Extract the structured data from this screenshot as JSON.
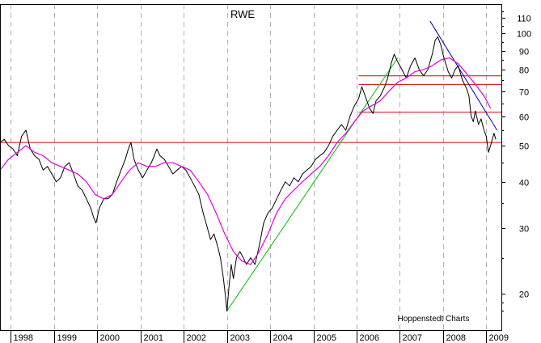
{
  "chart_data": {
    "type": "line",
    "title": "RWE",
    "credit": "Hoppenstedt Charts",
    "scale": "log",
    "ylim": [
      16,
      120
    ],
    "xlim": [
      1997.75,
      2009.35
    ],
    "y_ticks": [
      {
        "value": 110,
        "label": "110"
      },
      {
        "value": 100,
        "label": "100"
      },
      {
        "value": 90,
        "label": "90"
      },
      {
        "value": 80,
        "label": "80"
      },
      {
        "value": 70,
        "label": "70"
      },
      {
        "value": 60,
        "label": "60"
      },
      {
        "value": 50,
        "label": "50"
      },
      {
        "value": 40,
        "label": "40"
      },
      {
        "value": 30,
        "label": "30"
      },
      {
        "value": 20,
        "label": "20"
      }
    ],
    "x_ticks": [
      {
        "value": 1998,
        "label": "1998"
      },
      {
        "value": 1999,
        "label": "1999"
      },
      {
        "value": 2000,
        "label": "2000"
      },
      {
        "value": 2001,
        "label": "2001"
      },
      {
        "value": 2002,
        "label": "2002"
      },
      {
        "value": 2003,
        "label": "2003"
      },
      {
        "value": 2004,
        "label": "2004"
      },
      {
        "value": 2005,
        "label": "2005"
      },
      {
        "value": 2006,
        "label": "2006"
      },
      {
        "value": 2007,
        "label": "2007"
      },
      {
        "value": 2008,
        "label": "2008"
      },
      {
        "value": 2009,
        "label": "2009"
      }
    ],
    "grid": {
      "vertical": true,
      "horizontal": false,
      "style": "dashed"
    },
    "series": [
      {
        "role": "price",
        "color": "#000000",
        "points": [
          [
            1997.75,
            51
          ],
          [
            1997.85,
            52
          ],
          [
            1997.95,
            50
          ],
          [
            1998.05,
            49
          ],
          [
            1998.15,
            47
          ],
          [
            1998.25,
            53
          ],
          [
            1998.35,
            55
          ],
          [
            1998.45,
            49
          ],
          [
            1998.55,
            47
          ],
          [
            1998.65,
            46
          ],
          [
            1998.75,
            43
          ],
          [
            1998.85,
            44
          ],
          [
            1998.95,
            42
          ],
          [
            1999.05,
            40
          ],
          [
            1999.15,
            41
          ],
          [
            1999.25,
            44
          ],
          [
            1999.35,
            45
          ],
          [
            1999.45,
            42
          ],
          [
            1999.55,
            39
          ],
          [
            1999.65,
            38
          ],
          [
            1999.75,
            36
          ],
          [
            1999.85,
            34
          ],
          [
            1999.92,
            32
          ],
          [
            1999.97,
            31
          ],
          [
            2000.05,
            34
          ],
          [
            2000.15,
            36
          ],
          [
            2000.25,
            36
          ],
          [
            2000.35,
            37
          ],
          [
            2000.45,
            40
          ],
          [
            2000.55,
            43
          ],
          [
            2000.65,
            46
          ],
          [
            2000.72,
            49
          ],
          [
            2000.78,
            51
          ],
          [
            2000.85,
            46
          ],
          [
            2000.95,
            43
          ],
          [
            2001.05,
            41
          ],
          [
            2001.15,
            43
          ],
          [
            2001.25,
            45
          ],
          [
            2001.32,
            47
          ],
          [
            2001.38,
            49
          ],
          [
            2001.45,
            47
          ],
          [
            2001.55,
            46
          ],
          [
            2001.65,
            44
          ],
          [
            2001.75,
            42
          ],
          [
            2001.85,
            43
          ],
          [
            2001.95,
            44
          ],
          [
            2002.05,
            43
          ],
          [
            2002.15,
            41
          ],
          [
            2002.25,
            39
          ],
          [
            2002.35,
            37
          ],
          [
            2002.45,
            33
          ],
          [
            2002.55,
            30
          ],
          [
            2002.62,
            28
          ],
          [
            2002.7,
            29
          ],
          [
            2002.78,
            27
          ],
          [
            2002.85,
            25
          ],
          [
            2002.92,
            22
          ],
          [
            2002.96,
            20
          ],
          [
            2003.0,
            18
          ],
          [
            2003.05,
            21
          ],
          [
            2003.1,
            24
          ],
          [
            2003.15,
            22
          ],
          [
            2003.22,
            25
          ],
          [
            2003.3,
            26
          ],
          [
            2003.38,
            25
          ],
          [
            2003.45,
            24
          ],
          [
            2003.55,
            25
          ],
          [
            2003.65,
            24
          ],
          [
            2003.75,
            27
          ],
          [
            2003.85,
            31
          ],
          [
            2003.95,
            33
          ],
          [
            2004.05,
            34
          ],
          [
            2004.15,
            36
          ],
          [
            2004.25,
            38
          ],
          [
            2004.35,
            40
          ],
          [
            2004.45,
            39
          ],
          [
            2004.55,
            41
          ],
          [
            2004.65,
            40
          ],
          [
            2004.75,
            42
          ],
          [
            2004.85,
            43
          ],
          [
            2004.95,
            44
          ],
          [
            2005.05,
            46
          ],
          [
            2005.15,
            47
          ],
          [
            2005.25,
            48
          ],
          [
            2005.35,
            50
          ],
          [
            2005.45,
            53
          ],
          [
            2005.55,
            55
          ],
          [
            2005.65,
            57
          ],
          [
            2005.75,
            55
          ],
          [
            2005.85,
            60
          ],
          [
            2005.95,
            64
          ],
          [
            2006.05,
            67
          ],
          [
            2006.12,
            72
          ],
          [
            2006.2,
            68
          ],
          [
            2006.3,
            63
          ],
          [
            2006.38,
            61
          ],
          [
            2006.45,
            66
          ],
          [
            2006.55,
            68
          ],
          [
            2006.65,
            72
          ],
          [
            2006.72,
            76
          ],
          [
            2006.8,
            83
          ],
          [
            2006.87,
            88
          ],
          [
            2006.95,
            84
          ],
          [
            2007.05,
            80
          ],
          [
            2007.15,
            76
          ],
          [
            2007.25,
            82
          ],
          [
            2007.35,
            86
          ],
          [
            2007.45,
            80
          ],
          [
            2007.55,
            77
          ],
          [
            2007.65,
            80
          ],
          [
            2007.75,
            88
          ],
          [
            2007.82,
            96
          ],
          [
            2007.88,
            98
          ],
          [
            2007.95,
            93
          ],
          [
            2008.0,
            88
          ],
          [
            2008.05,
            84
          ],
          [
            2008.12,
            79
          ],
          [
            2008.2,
            76
          ],
          [
            2008.28,
            80
          ],
          [
            2008.35,
            82
          ],
          [
            2008.45,
            75
          ],
          [
            2008.55,
            71
          ],
          [
            2008.6,
            68
          ],
          [
            2008.65,
            60
          ],
          [
            2008.7,
            58
          ],
          [
            2008.75,
            62
          ],
          [
            2008.82,
            57
          ],
          [
            2008.88,
            59
          ],
          [
            2008.95,
            55
          ],
          [
            2009.0,
            53
          ],
          [
            2009.05,
            48
          ],
          [
            2009.1,
            50
          ],
          [
            2009.18,
            54
          ],
          [
            2009.22,
            52
          ]
        ]
      },
      {
        "role": "moving-average",
        "color": "#e000e0",
        "points": [
          [
            1997.75,
            43
          ],
          [
            1997.95,
            46
          ],
          [
            1998.15,
            48
          ],
          [
            1998.35,
            50
          ],
          [
            1998.55,
            48
          ],
          [
            1998.75,
            47
          ],
          [
            1998.95,
            45
          ],
          [
            1999.15,
            44
          ],
          [
            1999.35,
            43
          ],
          [
            1999.55,
            42
          ],
          [
            1999.75,
            40
          ],
          [
            1999.95,
            37
          ],
          [
            2000.15,
            36
          ],
          [
            2000.35,
            37
          ],
          [
            2000.55,
            40
          ],
          [
            2000.75,
            43
          ],
          [
            2000.95,
            45
          ],
          [
            2001.15,
            44
          ],
          [
            2001.35,
            44
          ],
          [
            2001.55,
            45
          ],
          [
            2001.75,
            45
          ],
          [
            2001.95,
            44
          ],
          [
            2002.15,
            43
          ],
          [
            2002.35,
            40
          ],
          [
            2002.55,
            37
          ],
          [
            2002.75,
            33
          ],
          [
            2002.95,
            29
          ],
          [
            2003.15,
            26
          ],
          [
            2003.35,
            24.5
          ],
          [
            2003.55,
            24
          ],
          [
            2003.75,
            26
          ],
          [
            2003.95,
            29
          ],
          [
            2004.15,
            33
          ],
          [
            2004.35,
            36
          ],
          [
            2004.55,
            38
          ],
          [
            2004.75,
            40
          ],
          [
            2004.95,
            42
          ],
          [
            2005.15,
            44
          ],
          [
            2005.35,
            47
          ],
          [
            2005.55,
            51
          ],
          [
            2005.75,
            54
          ],
          [
            2005.95,
            58
          ],
          [
            2006.15,
            62
          ],
          [
            2006.35,
            64
          ],
          [
            2006.55,
            66
          ],
          [
            2006.75,
            70
          ],
          [
            2006.95,
            74
          ],
          [
            2007.15,
            76
          ],
          [
            2007.35,
            79
          ],
          [
            2007.55,
            80
          ],
          [
            2007.75,
            82
          ],
          [
            2007.95,
            85
          ],
          [
            2008.15,
            86
          ],
          [
            2008.35,
            83
          ],
          [
            2008.55,
            78
          ],
          [
            2008.75,
            73
          ],
          [
            2008.95,
            68
          ],
          [
            2009.1,
            63
          ]
        ]
      }
    ],
    "trendlines": [
      {
        "color": "#00c000",
        "from": [
          2003.0,
          18
        ],
        "to": [
          2006.95,
          86
        ]
      },
      {
        "color": "#0000c0",
        "from": [
          2007.7,
          108
        ],
        "to": [
          2009.25,
          55
        ]
      }
    ],
    "hlines": [
      {
        "color": "#e00000",
        "value": 51,
        "from": 1997.75,
        "to": 2009.35
      },
      {
        "color": "#e00000",
        "value": 61.5,
        "from": 2006.05,
        "to": 2009.35
      },
      {
        "color": "#e00000",
        "value": 73,
        "from": 2006.05,
        "to": 2009.35
      },
      {
        "color": "#e00000",
        "value": 77,
        "from": 2006.05,
        "to": 2009.35
      }
    ]
  }
}
